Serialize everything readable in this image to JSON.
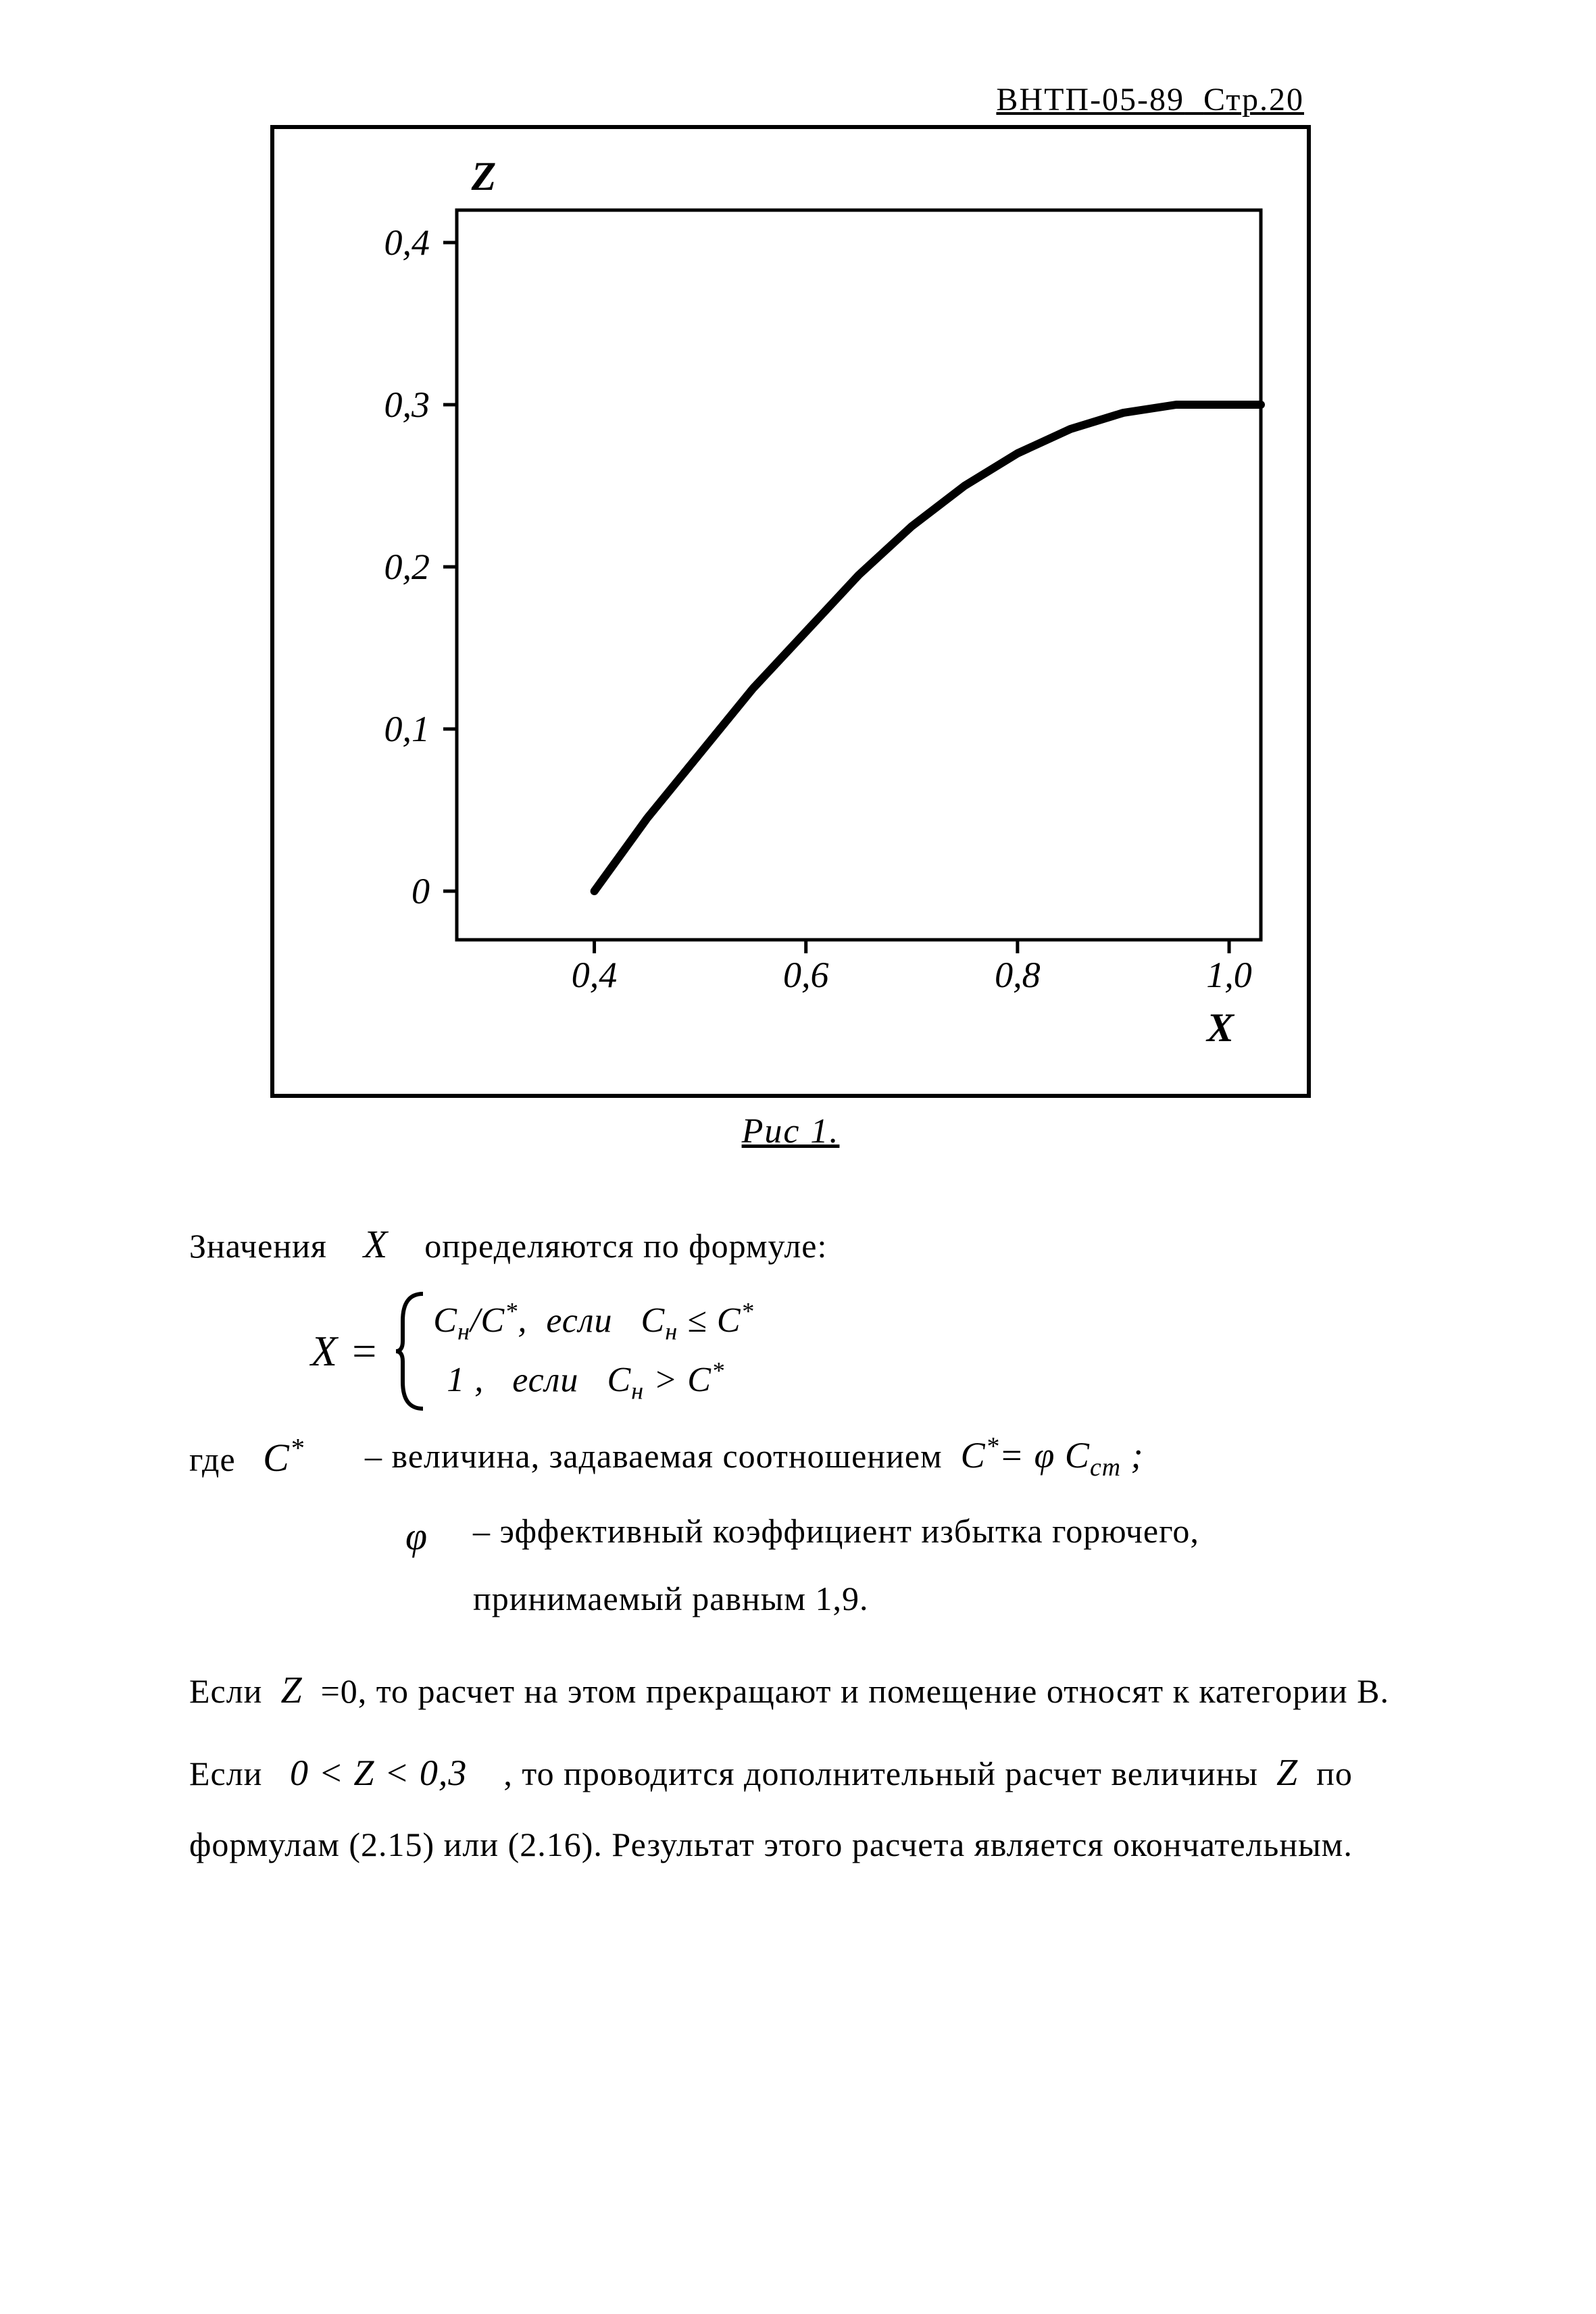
{
  "header": {
    "code": "ВНТП-05-89",
    "page_label": "Стр.20"
  },
  "chart": {
    "type": "line",
    "y_axis_label": "Z",
    "x_axis_label": "X",
    "y_ticks": [
      "0,4",
      "0,3",
      "0,2",
      "0,1",
      "0"
    ],
    "y_tick_values": [
      0.4,
      0.3,
      0.2,
      0.1,
      0.0
    ],
    "x_ticks": [
      "0,4",
      "0,6",
      "0,8",
      "1,0"
    ],
    "x_tick_values": [
      0.4,
      0.6,
      0.8,
      1.0
    ],
    "xlim": [
      0.27,
      1.03
    ],
    "ylim": [
      -0.03,
      0.42
    ],
    "curve": {
      "x": [
        0.4,
        0.45,
        0.5,
        0.55,
        0.6,
        0.65,
        0.7,
        0.75,
        0.8,
        0.85,
        0.9,
        0.95,
        1.0,
        1.03
      ],
      "z": [
        0.0,
        0.045,
        0.085,
        0.125,
        0.16,
        0.195,
        0.225,
        0.25,
        0.27,
        0.285,
        0.295,
        0.3,
        0.3,
        0.3
      ]
    },
    "colors": {
      "line": "#000000",
      "axis": "#000000",
      "background": "#ffffff",
      "outer_border": "#000000"
    },
    "line_width": 12,
    "axis_width": 5,
    "tick_fontsize": 54,
    "label_fontsize": 60,
    "caption": "Рис 1."
  },
  "text": {
    "intro": "Значения",
    "intro_var": "X",
    "intro_tail": "определяются по формуле:",
    "formula": {
      "lhs": "X =",
      "case1_lhs": "Cн / C*,",
      "case1_cond_word": "если",
      "case1_cond": "Cн ≤ C*",
      "case2_lhs": "1 ,",
      "case2_cond_word": "если",
      "case2_cond": "Cн > C*"
    },
    "where_label": "где",
    "def1_sym": "C*",
    "def1_text_a": "– величина, задаваемая соотношением",
    "def1_rel": "C* = φ Cст ;",
    "def2_sym": "φ",
    "def2_text": "– эффективный коэффициент избытка горючего, принимаемый равным 1,9.",
    "p3_a": "Если",
    "p3_var": "Z",
    "p3_b": "=0, то расчет на этом прекращают и помещение относят к категории В.",
    "p4_a": "Если",
    "p4_cond": "0 < Z < 0,3",
    "p4_b": ", то проводится дополнительный расчет величины",
    "p4_var": "Z",
    "p4_c": "по формулам (2.15) или (2.16). Результат этого расчета является окончательным."
  }
}
